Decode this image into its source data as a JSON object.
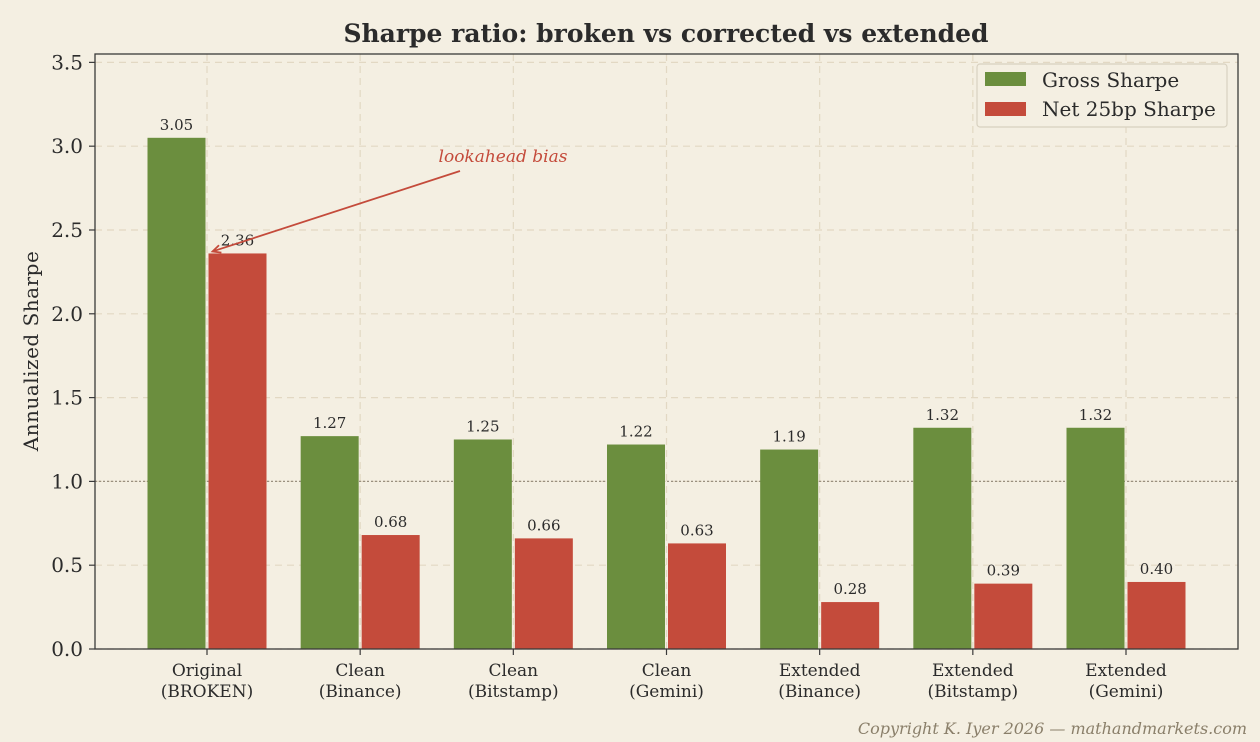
{
  "chart_data": {
    "type": "bar",
    "title": "Sharpe ratio: broken vs corrected vs extended",
    "xlabel": "",
    "ylabel": "Annualized Sharpe",
    "ylim": [
      0,
      3.55
    ],
    "yticks": [
      "0.0",
      "0.5",
      "1.0",
      "1.5",
      "2.0",
      "2.5",
      "3.0",
      "3.5"
    ],
    "categories": [
      [
        "Original",
        "(BROKEN)"
      ],
      [
        "Clean",
        "(Binance)"
      ],
      [
        "Clean",
        "(Bitstamp)"
      ],
      [
        "Clean",
        "(Gemini)"
      ],
      [
        "Extended",
        "(Binance)"
      ],
      [
        "Extended",
        "(Bitstamp)"
      ],
      [
        "Extended",
        "(Gemini)"
      ]
    ],
    "series": [
      {
        "name": "Gross Sharpe",
        "color": "#6b8e3e",
        "values": [
          3.05,
          1.27,
          1.25,
          1.22,
          1.19,
          1.32,
          1.32
        ],
        "labels": [
          "3.05",
          "1.27",
          "1.25",
          "1.22",
          "1.19",
          "1.32",
          "1.32"
        ]
      },
      {
        "name": "Net 25bp Sharpe",
        "color": "#c44b3b",
        "values": [
          2.36,
          0.68,
          0.66,
          0.63,
          0.28,
          0.39,
          0.4
        ],
        "labels": [
          "2.36",
          "0.68",
          "0.66",
          "0.63",
          "0.28",
          "0.39",
          "0.40"
        ]
      }
    ],
    "reference_line": 1.0,
    "grid": true,
    "legend_position": "top-right",
    "annotation": {
      "text": "lookahead bias",
      "target_category": 0,
      "target_series": 1,
      "color": "#c44b3b"
    }
  },
  "footer": {
    "copyright": "Copyright K. Iyer 2026 — mathandmarkets.com"
  }
}
